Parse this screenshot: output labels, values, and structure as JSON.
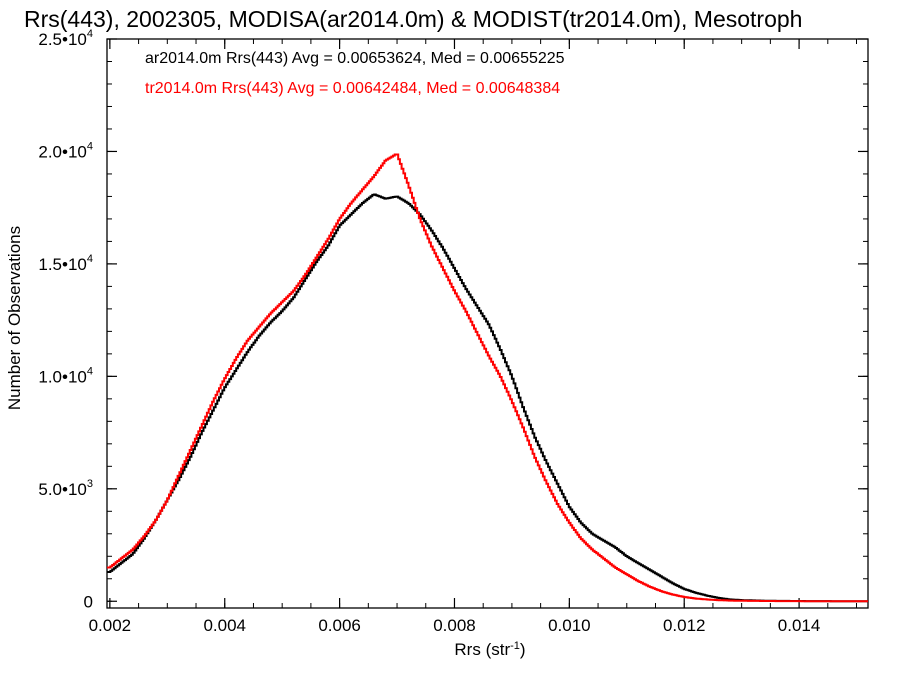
{
  "chart_data": {
    "type": "line",
    "title": "Rrs(443), 2002305, MODISA(ar2014.0m) & MODIST(tr2014.0m), Mesotroph",
    "xlabel": "Rrs (str",
    "xlabel_sup": "-1",
    "xlabel_end": ")",
    "ylabel": "Number of Observations",
    "xlim": [
      0.00195,
      0.0152
    ],
    "ylim": [
      -300,
      25000
    ],
    "x_ticks": [
      {
        "value": 0.002,
        "label": "0.002"
      },
      {
        "value": 0.004,
        "label": "0.004"
      },
      {
        "value": 0.006,
        "label": "0.006"
      },
      {
        "value": 0.008,
        "label": "0.008"
      },
      {
        "value": 0.01,
        "label": "0.010"
      },
      {
        "value": 0.012,
        "label": "0.012"
      },
      {
        "value": 0.014,
        "label": "0.014"
      }
    ],
    "y_ticks": [
      {
        "value": 0,
        "label": "0",
        "exp": ""
      },
      {
        "value": 5000,
        "label": "5.0•10",
        "exp": "3"
      },
      {
        "value": 10000,
        "label": "1.0•10",
        "exp": "4"
      },
      {
        "value": 15000,
        "label": "1.5•10",
        "exp": "4"
      },
      {
        "value": 20000,
        "label": "2.0•10",
        "exp": "4"
      },
      {
        "value": 25000,
        "label": "2.5•10",
        "exp": "4"
      }
    ],
    "series": [
      {
        "name": "ar2014.0m",
        "color": "#000000",
        "legend": "ar2014.0m Rrs(443) Avg = 0.00653624, Med = 0.00655225",
        "x": [
          0.002,
          0.0022,
          0.0024,
          0.0026,
          0.0028,
          0.003,
          0.0032,
          0.0034,
          0.0036,
          0.0038,
          0.004,
          0.0042,
          0.0044,
          0.0046,
          0.0048,
          0.005,
          0.0052,
          0.0054,
          0.0056,
          0.0058,
          0.006,
          0.0062,
          0.0064,
          0.0066,
          0.0068,
          0.007,
          0.0072,
          0.0074,
          0.0076,
          0.0078,
          0.008,
          0.0082,
          0.0084,
          0.0086,
          0.0088,
          0.009,
          0.0092,
          0.0094,
          0.0096,
          0.0098,
          0.01,
          0.0102,
          0.0104,
          0.0106,
          0.0108,
          0.011,
          0.0112,
          0.0114,
          0.0116,
          0.0118,
          0.012,
          0.0122,
          0.0124,
          0.0126,
          0.0128,
          0.013,
          0.0135,
          0.014,
          0.0145,
          0.015
        ],
        "y": [
          1300,
          1700,
          2100,
          2800,
          3600,
          4500,
          5400,
          6400,
          7500,
          8500,
          9500,
          10300,
          11100,
          11800,
          12400,
          12900,
          13500,
          14300,
          15100,
          15800,
          16700,
          17200,
          17700,
          18100,
          17900,
          18000,
          17700,
          17200,
          16500,
          15700,
          14800,
          13900,
          13100,
          12300,
          11200,
          10000,
          8600,
          7300,
          6200,
          5200,
          4200,
          3500,
          3000,
          2700,
          2400,
          2000,
          1700,
          1400,
          1100,
          800,
          550,
          380,
          250,
          150,
          80,
          50,
          20,
          10,
          5,
          0
        ]
      },
      {
        "name": "tr2014.0m",
        "color": "#ff0000",
        "legend": "tr2014.0m Rrs(443) Avg = 0.00642484, Med = 0.00648384",
        "x": [
          0.002,
          0.0022,
          0.0024,
          0.0026,
          0.0028,
          0.003,
          0.0032,
          0.0034,
          0.0036,
          0.0038,
          0.004,
          0.0042,
          0.0044,
          0.0046,
          0.0048,
          0.005,
          0.0052,
          0.0054,
          0.0056,
          0.0058,
          0.006,
          0.0062,
          0.0064,
          0.0066,
          0.0068,
          0.007,
          0.0072,
          0.0074,
          0.0076,
          0.0078,
          0.008,
          0.0082,
          0.0084,
          0.0086,
          0.0088,
          0.009,
          0.0092,
          0.0094,
          0.0096,
          0.0098,
          0.01,
          0.0102,
          0.0104,
          0.0106,
          0.0108,
          0.011,
          0.0112,
          0.0114,
          0.0116,
          0.0118,
          0.012,
          0.0122,
          0.0124,
          0.0126,
          0.0128,
          0.013,
          0.0135,
          0.014,
          0.0145,
          0.015
        ],
        "y": [
          1500,
          1900,
          2300,
          2900,
          3600,
          4500,
          5600,
          6700,
          7800,
          8900,
          9900,
          10800,
          11600,
          12200,
          12800,
          13300,
          13800,
          14500,
          15300,
          16100,
          17000,
          17700,
          18300,
          18900,
          19600,
          19900,
          18500,
          17000,
          15800,
          14800,
          13800,
          12900,
          11900,
          10900,
          10000,
          8900,
          7700,
          6400,
          5300,
          4300,
          3500,
          2800,
          2300,
          1900,
          1500,
          1200,
          900,
          650,
          450,
          300,
          190,
          120,
          80,
          50,
          30,
          20,
          10,
          5,
          0,
          0
        ]
      }
    ],
    "grid": false,
    "legend_position": "top-left"
  }
}
